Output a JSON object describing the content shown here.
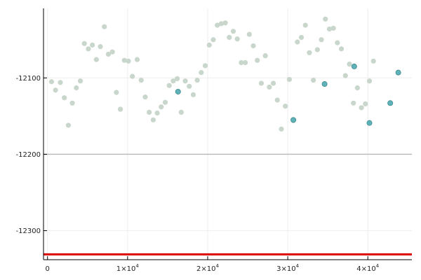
{
  "chart_data": {
    "type": "scatter",
    "title": "",
    "xlabel": "",
    "ylabel": "",
    "xlim": [
      -500,
      45500
    ],
    "ylim": [
      -12338,
      -12009
    ],
    "legend": "none",
    "grid": true,
    "x_ticks": [
      {
        "value": 0,
        "label": "0",
        "exp": ""
      },
      {
        "value": 10000,
        "label": "1×10",
        "exp": "4"
      },
      {
        "value": 20000,
        "label": "2×10",
        "exp": "4"
      },
      {
        "value": 30000,
        "label": "3×10",
        "exp": "4"
      },
      {
        "value": 40000,
        "label": "4×10",
        "exp": "4"
      }
    ],
    "y_ticks": [
      {
        "value": -12100,
        "label": "-12100"
      },
      {
        "value": -12200,
        "label": "-12200"
      },
      {
        "value": -12300,
        "label": "-12300"
      }
    ],
    "colors": {
      "background_points": "#c8d6cc",
      "highlight_points": "#5fb3b8",
      "highlight_stroke": "#3f8a8f",
      "reference_line": "#dd0000",
      "emphasis_gridline": "#bbbbbb",
      "grid": "#eeeeee",
      "axis": "#000000"
    },
    "emphasis_gridline": -12200,
    "reference_line": -12331,
    "series": [
      {
        "points": [
          [
            500,
            -12105
          ],
          [
            1000,
            -12116
          ],
          [
            1600,
            -12106
          ],
          [
            2100,
            -12126
          ],
          [
            2600,
            -12162
          ],
          [
            3100,
            -12133
          ],
          [
            3600,
            -12113
          ],
          [
            4100,
            -12104
          ],
          [
            4600,
            -12055
          ],
          [
            5100,
            -12062
          ],
          [
            5600,
            -12057
          ],
          [
            6100,
            -12076
          ],
          [
            6600,
            -12059
          ],
          [
            7100,
            -12033
          ],
          [
            7600,
            -12069
          ],
          [
            8100,
            -12066
          ],
          [
            8600,
            -12119
          ],
          [
            9100,
            -12141
          ],
          [
            9600,
            -12077
          ],
          [
            10100,
            -12078
          ],
          [
            10600,
            -12098
          ],
          [
            11200,
            -12076
          ],
          [
            11700,
            -12103
          ],
          [
            12200,
            -12125
          ],
          [
            12700,
            -12145
          ],
          [
            13200,
            -12155
          ],
          [
            13700,
            -12146
          ],
          [
            14200,
            -12138
          ],
          [
            14700,
            -12132
          ],
          [
            15200,
            -12110
          ],
          [
            15700,
            -12104
          ],
          [
            16200,
            -12101
          ],
          [
            16700,
            -12145
          ],
          [
            17200,
            -12104
          ],
          [
            17700,
            -12111
          ],
          [
            18200,
            -12122
          ],
          [
            18700,
            -12103
          ],
          [
            19200,
            -12093
          ],
          [
            19700,
            -12084
          ],
          [
            20200,
            -12057
          ],
          [
            20700,
            -12050
          ],
          [
            21200,
            -12031
          ],
          [
            21700,
            -12029
          ],
          [
            22200,
            -12028
          ],
          [
            22700,
            -12047
          ],
          [
            23200,
            -12039
          ],
          [
            23700,
            -12049
          ],
          [
            24200,
            -12080
          ],
          [
            24700,
            -12080
          ],
          [
            25200,
            -12043
          ],
          [
            25700,
            -12058
          ],
          [
            26200,
            -12077
          ],
          [
            26700,
            -12107
          ],
          [
            27200,
            -12071
          ],
          [
            27700,
            -12112
          ],
          [
            28200,
            -12107
          ],
          [
            28700,
            -12129
          ],
          [
            29200,
            -12167
          ],
          [
            29700,
            -12137
          ],
          [
            30200,
            -12102
          ],
          [
            30700,
            -12156
          ],
          [
            31200,
            -12053
          ],
          [
            31700,
            -12047
          ],
          [
            32200,
            -12031
          ],
          [
            32700,
            -12067
          ],
          [
            33200,
            -12103
          ],
          [
            33700,
            -12063
          ],
          [
            34200,
            -12050
          ],
          [
            34700,
            -12023
          ],
          [
            35200,
            -12036
          ],
          [
            35700,
            -12035
          ],
          [
            36200,
            -12054
          ],
          [
            36700,
            -12062
          ],
          [
            37200,
            -12097
          ],
          [
            37700,
            -12082
          ],
          [
            38200,
            -12133
          ],
          [
            38700,
            -12113
          ],
          [
            39200,
            -12139
          ],
          [
            39700,
            -12134
          ],
          [
            40200,
            -12104
          ],
          [
            40700,
            -12078
          ]
        ]
      },
      {
        "points": [
          [
            16300,
            -12118
          ],
          [
            30700,
            -12155
          ],
          [
            34600,
            -12108
          ],
          [
            38300,
            -12085
          ],
          [
            40200,
            -12159
          ],
          [
            42800,
            -12133
          ],
          [
            43800,
            -12093
          ]
        ]
      }
    ]
  }
}
